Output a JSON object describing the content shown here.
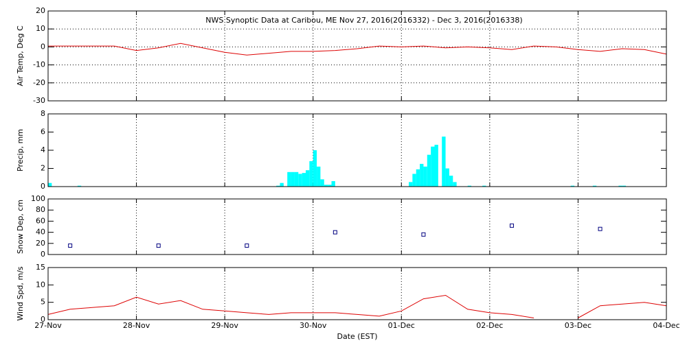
{
  "chart_data": [
    {
      "type": "line",
      "title": "NWS Synoptic Data at Caribou, ME   Nov 27, 2016(2016332) - Dec  3, 2016(2016338)",
      "y_label": "Air Temp, Deg C",
      "color": "#dd0000",
      "x": [
        0,
        6,
        12,
        18,
        24,
        30,
        36,
        42,
        48,
        54,
        60,
        66,
        72,
        78,
        84,
        90,
        96,
        102,
        108,
        114,
        120,
        126,
        132,
        138,
        144,
        150,
        156,
        162,
        168
      ],
      "values": [
        0.5,
        0.5,
        0.5,
        0.5,
        -2,
        -0.5,
        2,
        -0.5,
        -3,
        -4.5,
        -3.5,
        -2.5,
        -2.5,
        -2,
        -1,
        0.5,
        0,
        0.5,
        -0.5,
        0,
        -0.5,
        -1.5,
        0.5,
        0,
        -1.5,
        -2.5,
        -1,
        -1.5,
        -4
      ],
      "xlim": [
        0,
        168
      ],
      "ylim": [
        -30,
        20
      ],
      "yticks": [
        -30,
        -20,
        -10,
        0,
        10,
        20
      ],
      "ygrid": true,
      "xgrid": true
    },
    {
      "type": "bar",
      "y_label": "Precip, mm",
      "color": "#00ffff",
      "x": [
        0,
        8,
        62,
        63,
        65,
        66,
        67,
        68,
        69,
        70,
        71,
        72,
        73,
        74,
        75,
        76,
        77,
        98,
        99,
        100,
        101,
        102,
        103,
        104,
        105,
        107,
        108,
        109,
        110,
        114,
        118,
        142,
        148,
        155,
        156
      ],
      "values": [
        0.4,
        0.1,
        0.1,
        0.4,
        1.6,
        1.6,
        1.6,
        1.4,
        1.5,
        1.8,
        2.8,
        4.0,
        2.2,
        0.8,
        0.2,
        0.2,
        0.6,
        0.5,
        1.4,
        1.9,
        2.5,
        2.2,
        3.5,
        4.4,
        4.6,
        5.5,
        2.0,
        1.2,
        0.5,
        0.1,
        0.1,
        0.1,
        0.1,
        0.1,
        0.1
      ],
      "xlim": [
        0,
        168
      ],
      "ylim": [
        0,
        8
      ],
      "yticks": [
        0,
        2,
        4,
        6,
        8
      ],
      "ygrid": false,
      "xgrid": true
    },
    {
      "type": "scatter",
      "y_label": "Snow Dep, cm",
      "color": "#000080",
      "x": [
        6,
        30,
        54,
        78,
        102,
        126,
        150
      ],
      "values": [
        16,
        16,
        16,
        40,
        36,
        52,
        46
      ],
      "xlim": [
        0,
        168
      ],
      "ylim": [
        0,
        100
      ],
      "yticks": [
        0,
        20,
        40,
        60,
        80,
        100
      ],
      "ygrid": false,
      "xgrid": true
    },
    {
      "type": "line",
      "y_label": "Wind Spd, m/s",
      "x_label": "Date (EST)",
      "color": "#dd0000",
      "x": [
        0,
        6,
        12,
        18,
        24,
        30,
        36,
        42,
        48,
        54,
        60,
        66,
        72,
        78,
        84,
        90,
        96,
        102,
        108,
        114,
        120,
        126,
        132,
        138,
        144,
        150,
        156,
        162,
        168
      ],
      "values": [
        1.5,
        3,
        3.5,
        4,
        6.5,
        4.5,
        5.5,
        3,
        2.5,
        2,
        1.5,
        2,
        2,
        2,
        1.5,
        1,
        2.5,
        6,
        7,
        3,
        2,
        1.5,
        0.5,
        null,
        0.5,
        4,
        4.5,
        5,
        4
      ],
      "xlim": [
        0,
        168
      ],
      "ylim": [
        0,
        15
      ],
      "yticks": [
        0,
        5,
        10,
        15
      ],
      "ygrid": false,
      "xgrid": true,
      "xticks": [
        {
          "value": 0,
          "label": "27-Nov"
        },
        {
          "value": 24,
          "label": "28-Nov"
        },
        {
          "value": 48,
          "label": "29-Nov"
        },
        {
          "value": 72,
          "label": "30-Nov"
        },
        {
          "value": 96,
          "label": "01-Dec"
        },
        {
          "value": 120,
          "label": "02-Dec"
        },
        {
          "value": 144,
          "label": "03-Dec"
        },
        {
          "value": 168,
          "label": "04-Dec"
        }
      ]
    }
  ]
}
